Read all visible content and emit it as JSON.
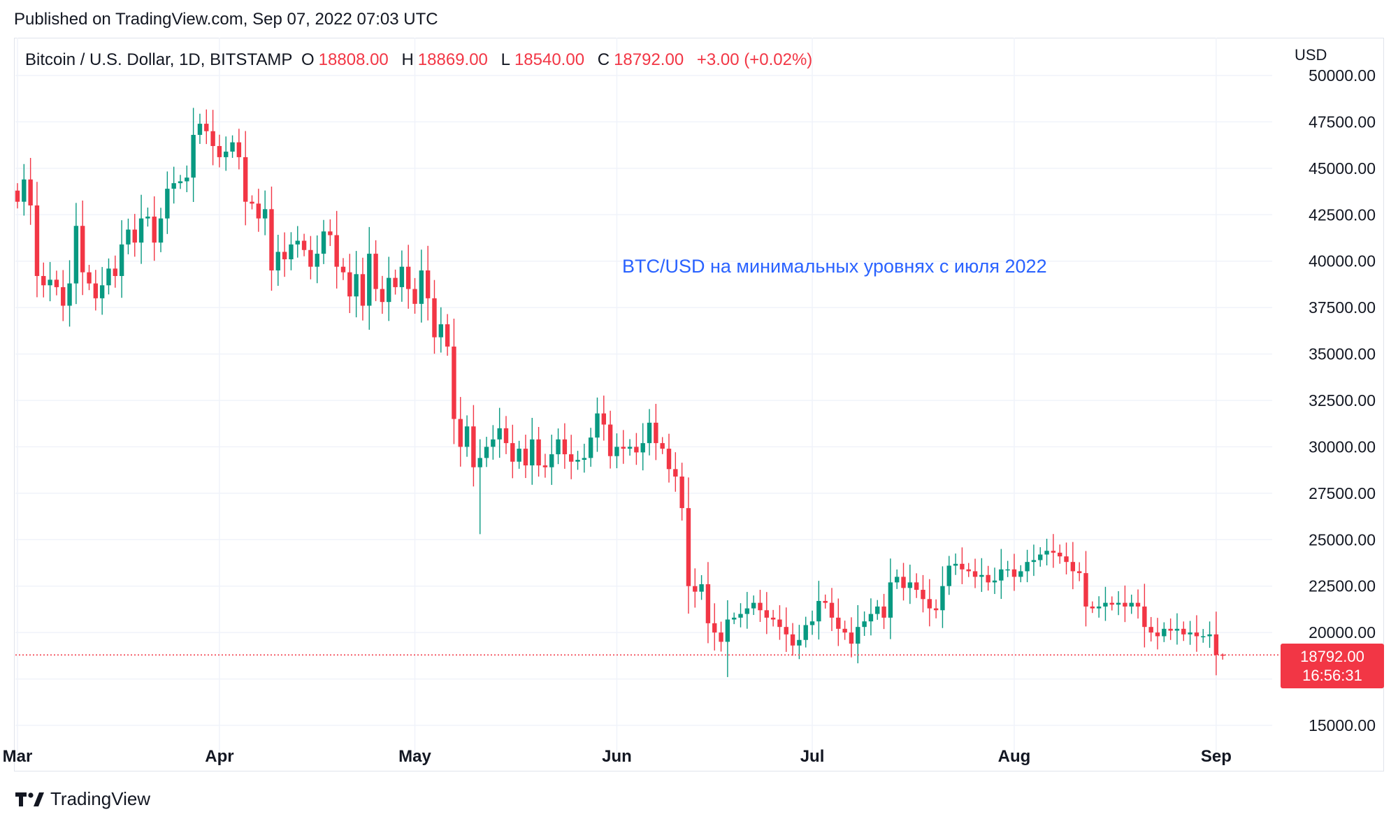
{
  "header": {
    "published": "Published on TradingView.com, Sep 07, 2022 07:03 UTC"
  },
  "legend": {
    "symbol": "Bitcoin / U.S. Dollar, 1D, BITSTAMP",
    "o_label": "O",
    "o_value": "18808.00",
    "h_label": "H",
    "h_value": "18869.00",
    "l_label": "L",
    "l_value": "18540.00",
    "c_label": "C",
    "c_value": "18792.00",
    "change": "+3.00 (+0.02%)"
  },
  "annotation": "BTC/USD на минимальных уровнях с июля 2022",
  "axis": {
    "currency": "USD"
  },
  "price_badge": {
    "value": "18792.00",
    "countdown": "16:56:31"
  },
  "brand": {
    "name": "TradingView"
  },
  "colors": {
    "up": "#089981",
    "down": "#f23645",
    "grid": "#f0f3fa",
    "annotation": "#2962ff"
  },
  "chart_data": {
    "type": "candlestick",
    "y_axis_ticks": [
      "15000.00",
      "20000.00",
      "22500.00",
      "25000.00",
      "27500.00",
      "30000.00",
      "32500.00",
      "35000.00",
      "37500.00",
      "40000.00",
      "42500.00",
      "45000.00",
      "47500.00",
      "50000.00"
    ],
    "ylim": [
      13500,
      50500
    ],
    "x_axis_ticks": [
      {
        "label": "Mar",
        "date": "2022-03-01"
      },
      {
        "label": "Apr",
        "date": "2022-04-01"
      },
      {
        "label": "May",
        "date": "2022-05-01"
      },
      {
        "label": "Jun",
        "date": "2022-06-01"
      },
      {
        "label": "Jul",
        "date": "2022-07-01"
      },
      {
        "label": "Aug",
        "date": "2022-08-01"
      },
      {
        "label": "Sep",
        "date": "2022-09-01"
      }
    ],
    "start_date": "2022-03-01",
    "last_price": 18792,
    "closes": [
      43200,
      44400,
      43000,
      39200,
      38700,
      39000,
      38600,
      37600,
      38800,
      41900,
      39400,
      38800,
      38000,
      38700,
      39600,
      39200,
      40900,
      41700,
      41000,
      42300,
      42400,
      41000,
      42300,
      43900,
      44200,
      44300,
      44500,
      46800,
      47400,
      47000,
      46200,
      45600,
      45900,
      46400,
      45600,
      43200,
      43100,
      42300,
      42800,
      39500,
      40500,
      40100,
      40900,
      41100,
      40600,
      39700,
      40400,
      41600,
      41400,
      39700,
      39400,
      38100,
      39300,
      37600,
      40400,
      38500,
      37800,
      39100,
      38600,
      39700,
      38500,
      37700,
      39500,
      38000,
      35900,
      36600,
      35400,
      31500,
      30000,
      31100,
      28900,
      29400,
      30000,
      30400,
      31000,
      30200,
      29200,
      29900,
      29000,
      30400,
      29000,
      28900,
      29600,
      30400,
      29600,
      29200,
      29300,
      29400,
      30500,
      31800,
      31200,
      29500,
      30000,
      29900,
      30000,
      29700,
      30200,
      31300,
      30200,
      29900,
      28800,
      28400,
      26700,
      22500,
      22200,
      22600,
      20500,
      20000,
      19500,
      20700,
      20800,
      21000,
      21300,
      21600,
      21200,
      20800,
      20700,
      20300,
      19900,
      19300,
      19600,
      20400,
      20600,
      21700,
      21600,
      20800,
      20200,
      20000,
      19400,
      20300,
      20600,
      21000,
      21400,
      20800,
      22700,
      23000,
      22400,
      22700,
      22300,
      21800,
      21300,
      21200,
      22500,
      23600,
      23700,
      23400,
      23300,
      23000,
      23100,
      22700,
      22800,
      23400,
      23400,
      23000,
      23300,
      23800,
      23900,
      24200,
      24400,
      24300,
      24100,
      23800,
      23300,
      23200,
      21400,
      21300,
      21400,
      21600,
      21500,
      21600,
      21400,
      21600,
      21400,
      20300,
      20000,
      19800,
      20200,
      20100,
      20200,
      19900,
      20000,
      19800,
      19800,
      19900,
      18800,
      18792
    ],
    "lows": [
      37600,
      15200
    ],
    "highs": [
      48300,
      18869
    ]
  }
}
